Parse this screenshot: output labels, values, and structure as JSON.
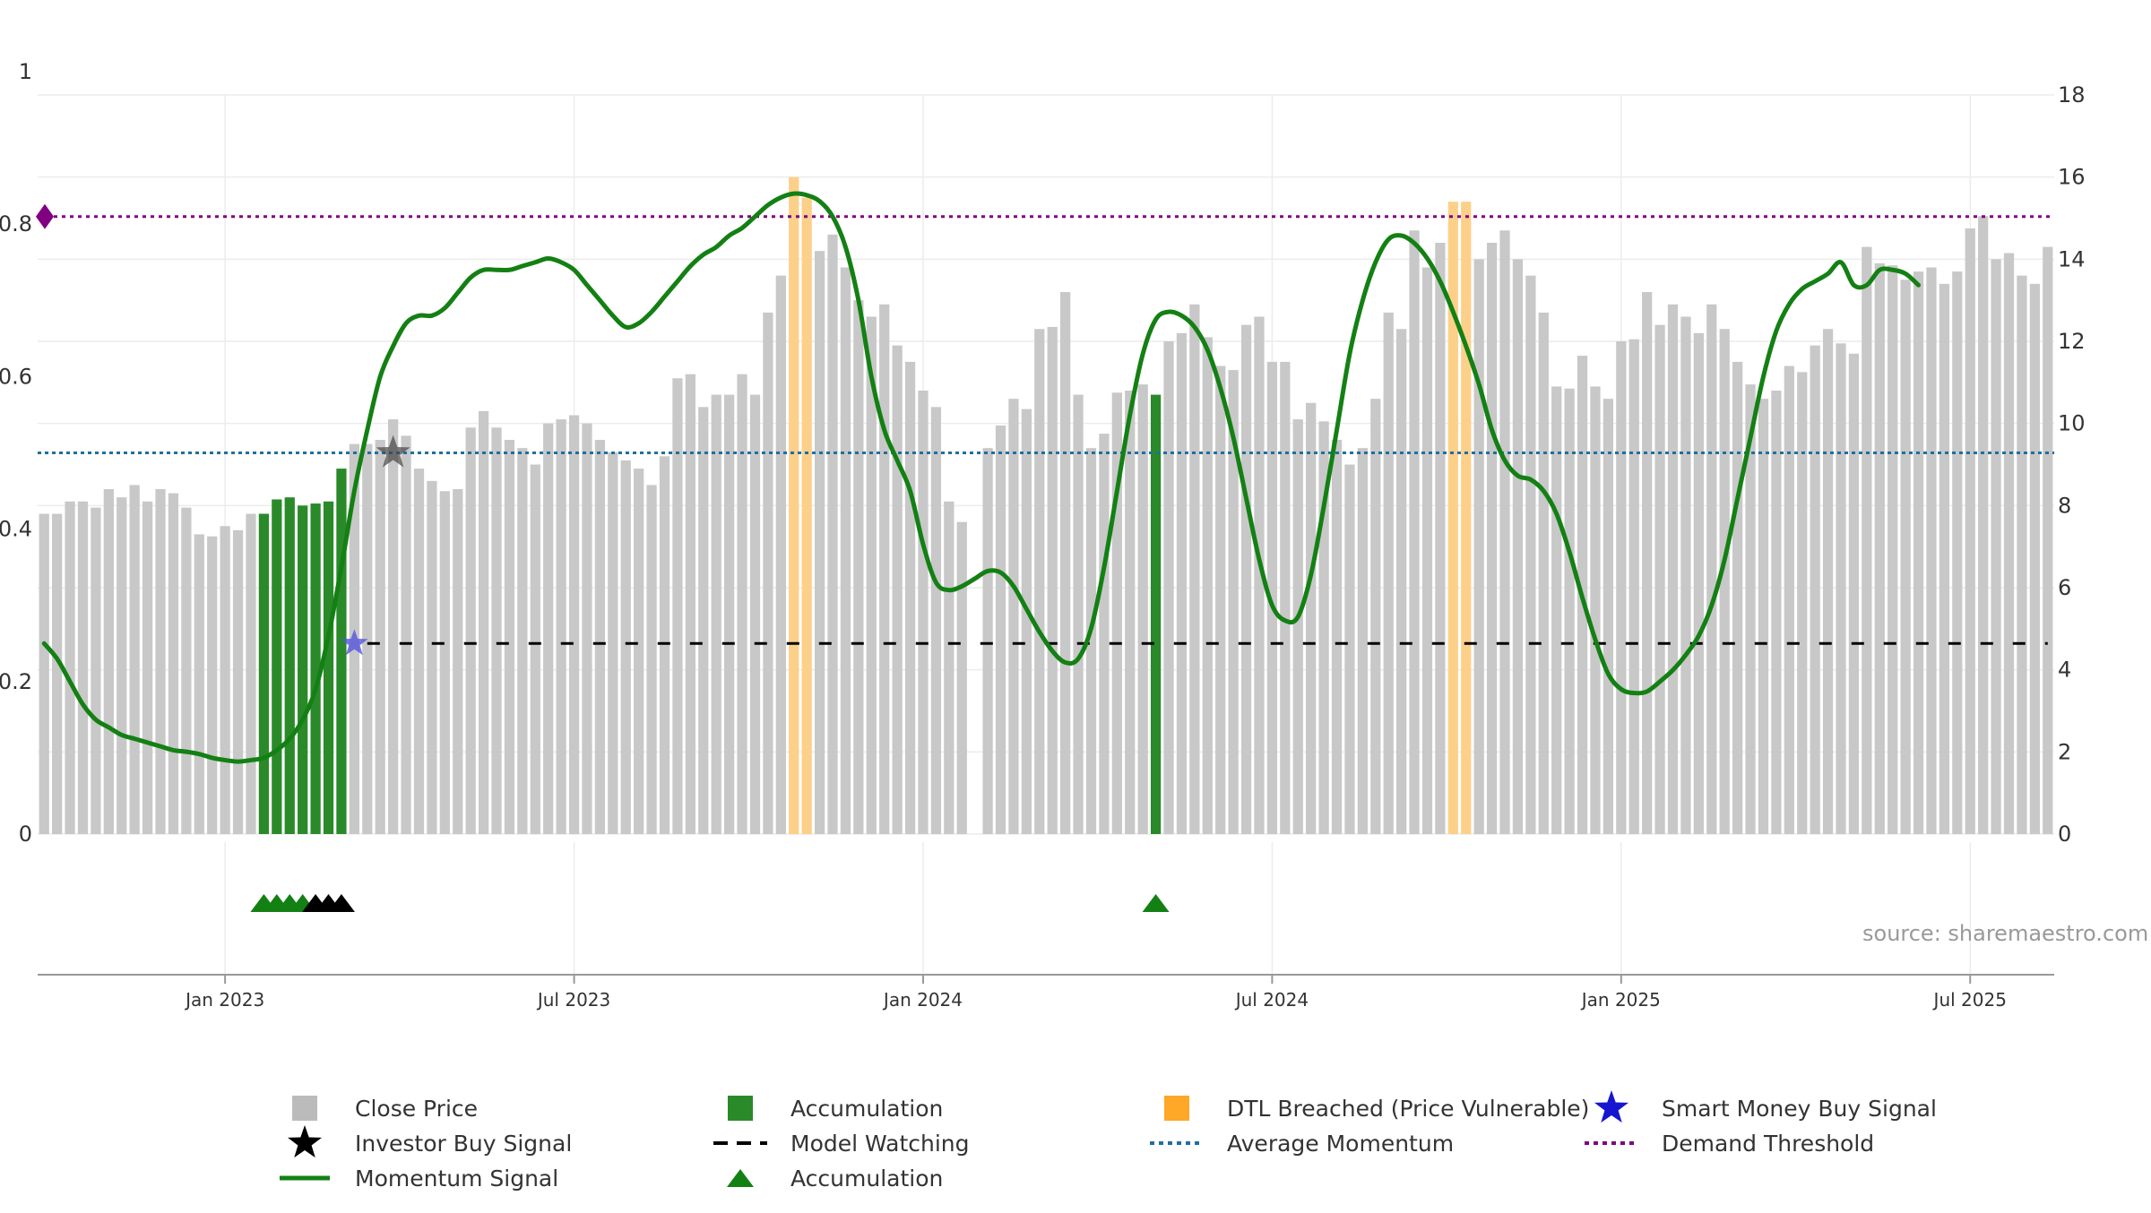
{
  "chart_data": {
    "type": "bar",
    "axes": {
      "y_left": {
        "ticks": [
          "0",
          "0.2",
          "0.4",
          "0.6",
          "0.8",
          "1"
        ],
        "ylim": [
          0,
          1
        ]
      },
      "y_right": {
        "ticks": [
          "0",
          "2",
          "4",
          "6",
          "8",
          "10",
          "12",
          "14",
          "16",
          "18"
        ],
        "ylim": [
          0,
          18
        ]
      },
      "x_ticks": [
        "Jan 2023",
        "Jul 2023",
        "Jan 2024",
        "Jul 2024",
        "Jan 2025",
        "Jul 2025"
      ],
      "grid": true
    },
    "reference_lines": {
      "demand_threshold": 0.81,
      "average_momentum": 0.5,
      "model_watching": 0.25
    },
    "close_price": [
      7.8,
      7.8,
      8.1,
      8.1,
      7.95,
      8.4,
      8.2,
      8.5,
      8.1,
      8.4,
      8.3,
      7.95,
      7.3,
      7.25,
      7.5,
      7.4,
      7.8,
      7.8,
      8.15,
      8.2,
      8.0,
      8.05,
      8.1,
      8.9,
      9.5,
      9.5,
      9.6,
      10.1,
      9.7,
      8.9,
      8.6,
      8.35,
      8.4,
      9.9,
      10.3,
      9.9,
      9.6,
      9.4,
      9.0,
      10.0,
      10.1,
      10.2,
      10.0,
      9.6,
      9.3,
      9.1,
      8.9,
      8.5,
      9.2,
      11.1,
      11.2,
      10.4,
      10.7,
      10.7,
      11.2,
      10.7,
      12.7,
      13.6,
      16.0,
      15.5,
      14.2,
      14.6,
      13.8,
      13.0,
      12.6,
      12.9,
      11.9,
      11.5,
      10.8,
      10.4,
      8.1,
      7.6,
      0,
      9.4,
      9.95,
      10.6,
      10.35,
      12.3,
      12.35,
      13.2,
      10.7,
      9.4,
      9.75,
      10.75,
      10.8,
      10.95,
      10.7,
      12.0,
      12.2,
      12.9,
      12.1,
      11.4,
      11.3,
      12.4,
      12.6,
      11.5,
      11.5,
      10.1,
      10.5,
      10.05,
      9.6,
      9.0,
      9.4,
      10.6,
      12.7,
      12.3,
      14.7,
      13.8,
      14.4,
      15.4,
      15.4,
      14.0,
      14.4,
      14.7,
      14.0,
      13.6,
      12.7,
      10.9,
      10.85,
      11.65,
      10.9,
      10.6,
      12.0,
      12.05,
      13.2,
      12.4,
      12.9,
      12.6,
      12.2,
      12.9,
      12.3,
      11.5,
      10.95,
      10.6,
      10.8,
      11.4,
      11.25,
      11.9,
      12.3,
      11.95,
      11.7,
      14.3,
      13.9,
      13.85,
      13.5,
      13.7,
      13.8,
      13.4,
      13.7,
      14.75,
      15.05,
      14.0,
      14.15,
      13.6,
      13.4,
      14.3
    ],
    "bar_categories": [
      "close",
      "close",
      "close",
      "close",
      "close",
      "close",
      "close",
      "close",
      "close",
      "close",
      "close",
      "close",
      "close",
      "close",
      "close",
      "close",
      "close",
      "accumulation",
      "accumulation",
      "accumulation",
      "accumulation",
      "accumulation",
      "accumulation",
      "accumulation",
      "close",
      "close",
      "close",
      "close",
      "close",
      "close",
      "close",
      "close",
      "close",
      "close",
      "close",
      "close",
      "close",
      "close",
      "close",
      "close",
      "close",
      "close",
      "close",
      "close",
      "close",
      "close",
      "close",
      "close",
      "close",
      "close",
      "close",
      "close",
      "close",
      "close",
      "close",
      "close",
      "close",
      "close",
      "dtl",
      "dtl",
      "close",
      "close",
      "close",
      "close",
      "close",
      "close",
      "close",
      "close",
      "close",
      "close",
      "close",
      "close",
      "close",
      "close",
      "close",
      "close",
      "close",
      "close",
      "close",
      "close",
      "close",
      "close",
      "close",
      "close",
      "close",
      "close",
      "accumulation",
      "close",
      "close",
      "close",
      "close",
      "close",
      "close",
      "close",
      "close",
      "close",
      "close",
      "close",
      "close",
      "close",
      "close",
      "close",
      "close",
      "close",
      "close",
      "close",
      "close",
      "close",
      "close",
      "dtl",
      "dtl",
      "close",
      "close",
      "close",
      "close",
      "close",
      "close",
      "close",
      "close",
      "close",
      "close",
      "close",
      "close",
      "close",
      "close",
      "close",
      "close",
      "close",
      "close",
      "close",
      "close",
      "close",
      "close",
      "close",
      "close",
      "close",
      "close",
      "close",
      "close",
      "close",
      "close",
      "close",
      "close",
      "close",
      "close",
      "close",
      "close",
      "close",
      "close",
      "close",
      "close",
      "close",
      "close",
      "close",
      "close",
      "close",
      "close",
      "close"
    ],
    "momentum": [
      0.25,
      0.23,
      0.2,
      0.17,
      0.15,
      0.14,
      0.13,
      0.125,
      0.12,
      0.115,
      0.11,
      0.108,
      0.105,
      0.1,
      0.097,
      0.095,
      0.097,
      0.1,
      0.11,
      0.125,
      0.15,
      0.19,
      0.26,
      0.35,
      0.45,
      0.53,
      0.6,
      0.64,
      0.67,
      0.68,
      0.68,
      0.69,
      0.71,
      0.73,
      0.74,
      0.74,
      0.74,
      0.745,
      0.75,
      0.755,
      0.75,
      0.74,
      0.72,
      0.7,
      0.68,
      0.665,
      0.67,
      0.685,
      0.705,
      0.725,
      0.745,
      0.76,
      0.77,
      0.785,
      0.795,
      0.81,
      0.825,
      0.835,
      0.84,
      0.838,
      0.83,
      0.81,
      0.77,
      0.7,
      0.6,
      0.53,
      0.49,
      0.45,
      0.38,
      0.33,
      0.32,
      0.325,
      0.335,
      0.345,
      0.343,
      0.325,
      0.295,
      0.265,
      0.24,
      0.225,
      0.23,
      0.27,
      0.35,
      0.45,
      0.55,
      0.63,
      0.675,
      0.685,
      0.68,
      0.665,
      0.635,
      0.585,
      0.52,
      0.44,
      0.36,
      0.3,
      0.28,
      0.285,
      0.34,
      0.43,
      0.53,
      0.63,
      0.7,
      0.75,
      0.78,
      0.785,
      0.775,
      0.755,
      0.725,
      0.685,
      0.64,
      0.59,
      0.53,
      0.49,
      0.47,
      0.465,
      0.45,
      0.42,
      0.37,
      0.31,
      0.255,
      0.21,
      0.19,
      0.185,
      0.187,
      0.2,
      0.215,
      0.235,
      0.26,
      0.3,
      0.36,
      0.44,
      0.52,
      0.6,
      0.66,
      0.695,
      0.715,
      0.725,
      0.735,
      0.75,
      0.72,
      0.72,
      0.74,
      0.74,
      0.735,
      0.72
    ],
    "triangles": [
      {
        "type": "accumulation",
        "color": "#138013",
        "index": 17
      },
      {
        "type": "accumulation",
        "color": "#138013",
        "index": 18
      },
      {
        "type": "accumulation",
        "color": "#138013",
        "index": 19
      },
      {
        "type": "accumulation",
        "color": "#138013",
        "index": 20
      },
      {
        "type": "investor",
        "color": "#000000",
        "index": 21
      },
      {
        "type": "investor",
        "color": "#000000",
        "index": 22
      },
      {
        "type": "investor",
        "color": "#000000",
        "index": 23
      },
      {
        "type": "accumulation",
        "color": "#138013",
        "index": 86
      }
    ],
    "markers": [
      {
        "type": "investor_buy_star",
        "index": 27,
        "value": 0.5,
        "color": "#444444"
      },
      {
        "type": "smart_money_buy_star",
        "index": 24,
        "value": 0.25,
        "color": "#5555dd"
      },
      {
        "type": "demand_diamond",
        "index": 0,
        "value": 0.81,
        "color": "#800080"
      }
    ],
    "source_text": "source: sharemaestro.com",
    "legend": [
      {
        "label": "Close Price",
        "swatch": "square",
        "color": "#bbbbbb"
      },
      {
        "label": "Accumulation",
        "swatch": "square",
        "color": "#2a8a2a"
      },
      {
        "label": "DTL Breached (Price Vulnerable)",
        "swatch": "square",
        "color": "#ffa726"
      },
      {
        "label": "Smart Money Buy Signal",
        "swatch": "star",
        "color": "#1616d0"
      },
      {
        "label": "Investor Buy Signal",
        "swatch": "star",
        "color": "#000000"
      },
      {
        "label": "Model Watching",
        "swatch": "dash",
        "color": "#000000"
      },
      {
        "label": "Average Momentum",
        "swatch": "dot",
        "color": "#1f6fa0"
      },
      {
        "label": "Demand Threshold",
        "swatch": "dot",
        "color": "#800080"
      },
      {
        "label": "Momentum Signal",
        "swatch": "line",
        "color": "#138013"
      },
      {
        "label": "Accumulation",
        "swatch": "triangle",
        "color": "#138013"
      }
    ],
    "colors": {
      "close": "#c8c8c8",
      "accumulation": "#2a8a2a",
      "dtl": "#fdd08a",
      "momentum": "#138013",
      "demand_threshold": "#800080",
      "average_momentum": "#1f6fa0",
      "model_watching": "#000000",
      "grid": "#ececec",
      "axis": "#999999"
    }
  }
}
